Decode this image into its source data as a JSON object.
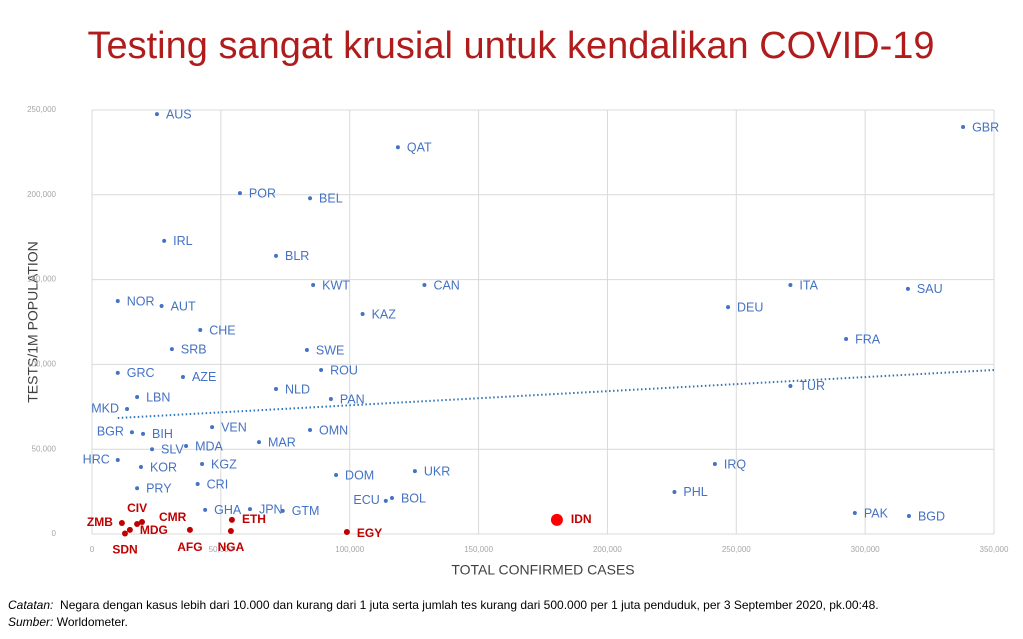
{
  "chart_data": {
    "type": "scatter",
    "title": "Testing sangat krusial untuk kendalikan COVID-19",
    "x_label": "TOTAL CONFIRMED CASES",
    "y_label": "TESTS/1M POPULATION",
    "xlim": [
      0,
      350000
    ],
    "ylim": [
      0,
      250000
    ],
    "xticks": [
      0,
      {
        "value": 50000,
        "label": "50,000"
      },
      {
        "value": 100000,
        "label": "100,000"
      },
      {
        "value": 150000,
        "label": "150,000"
      },
      {
        "value": 200000,
        "label": "200,000"
      },
      {
        "value": 250000,
        "label": "250,000"
      },
      {
        "value": 300000,
        "label": "300,000"
      },
      {
        "value": 350000,
        "label": "350,000"
      }
    ],
    "yticks": [
      0,
      {
        "value": 50000,
        "label": "50,000"
      },
      {
        "value": 100000,
        "label": "100,000"
      },
      {
        "value": 150000,
        "label": "150,000"
      },
      {
        "value": 200000,
        "label": "200,000"
      },
      {
        "value": 250000,
        "label": "250,000"
      }
    ],
    "grid": true,
    "series": [
      {
        "color": "#4472c4",
        "marker_size": 2,
        "labels": [
          "AUS",
          "QAT",
          "GBR",
          "POR",
          "BEL",
          "IRL",
          "BLR",
          "KWT",
          "CAN",
          "ITA",
          "SAU",
          "NOR",
          "AUT",
          "DEU",
          "KAZ",
          "CHE",
          "FRA",
          "SRB",
          "SWE",
          "ROU",
          "GRC",
          "AZE",
          "LBN",
          "NLD",
          "PAN",
          "TUR",
          "MKD",
          "VEN",
          "OMN",
          "BGR",
          "BIH",
          "MAR",
          "SLV",
          "MDA",
          "HRC",
          "KOR",
          "KGZ",
          "IRQ",
          "DOM",
          "UKR",
          "CRI",
          "PRY",
          "PHL",
          "BOL",
          "ECU",
          "JPN",
          "GHA",
          "GTM",
          "PAK",
          "BGD"
        ],
        "x": [
          25200,
          118700,
          338000,
          57400,
          84600,
          28000,
          71400,
          85800,
          129000,
          271000,
          316600,
          10000,
          27000,
          246800,
          105000,
          42000,
          292600,
          31000,
          83400,
          88900,
          10000,
          35300,
          17500,
          71400,
          92700,
          271000,
          13600,
          46600,
          84600,
          15500,
          19800,
          64800,
          23300,
          36500,
          10000,
          19000,
          42700,
          241700,
          94700,
          125300,
          41000,
          17500,
          226000,
          116400,
          114000,
          61300,
          43900,
          74000,
          296000,
          317000
        ],
        "y": [
          247600,
          228000,
          240000,
          201000,
          198000,
          172800,
          164000,
          146800,
          146800,
          146800,
          144500,
          137400,
          134400,
          133800,
          129700,
          120300,
          115000,
          109000,
          108500,
          96700,
          95000,
          92600,
          80800,
          85500,
          79600,
          87300,
          73700,
          63000,
          61300,
          60000,
          59000,
          54200,
          50000,
          51900,
          43600,
          39500,
          41300,
          41300,
          34800,
          37100,
          29500,
          27000,
          24800,
          21200,
          19500,
          14700,
          14200,
          13600,
          12400,
          10600
        ]
      },
      {
        "color": "#c00000",
        "marker_size": 3,
        "labels": [
          "ZMB",
          "CIV",
          "CMR",
          "MDG",
          "SDN",
          "AFG",
          "NGA",
          "ETH",
          "EGY"
        ],
        "x": [
          11600,
          17500,
          19400,
          14700,
          12800,
          38000,
          53900,
          54300,
          98900
        ],
        "y": [
          6500,
          5900,
          7100,
          2400,
          300,
          2400,
          1800,
          8300,
          1200
        ]
      },
      {
        "color": "#ff0000",
        "marker_size": 6,
        "labels": [
          "IDN"
        ],
        "x": [
          180400
        ],
        "y": [
          8300
        ]
      }
    ],
    "trendline": {
      "color": "#2e75b6",
      "x": [
        10000,
        350000
      ],
      "y": [
        68400,
        96700
      ]
    }
  },
  "notes": {
    "catatan_label": "Catatan:",
    "catatan": "Negara dengan kasus lebih dari 10.000 dan kurang dari 1 juta serta jumlah tes kurang dari 500.000 per 1 juta penduduk, per 3 September 2020, pk.00:48.",
    "sumber_label": "Sumber:",
    "sumber": "Worldometer."
  }
}
